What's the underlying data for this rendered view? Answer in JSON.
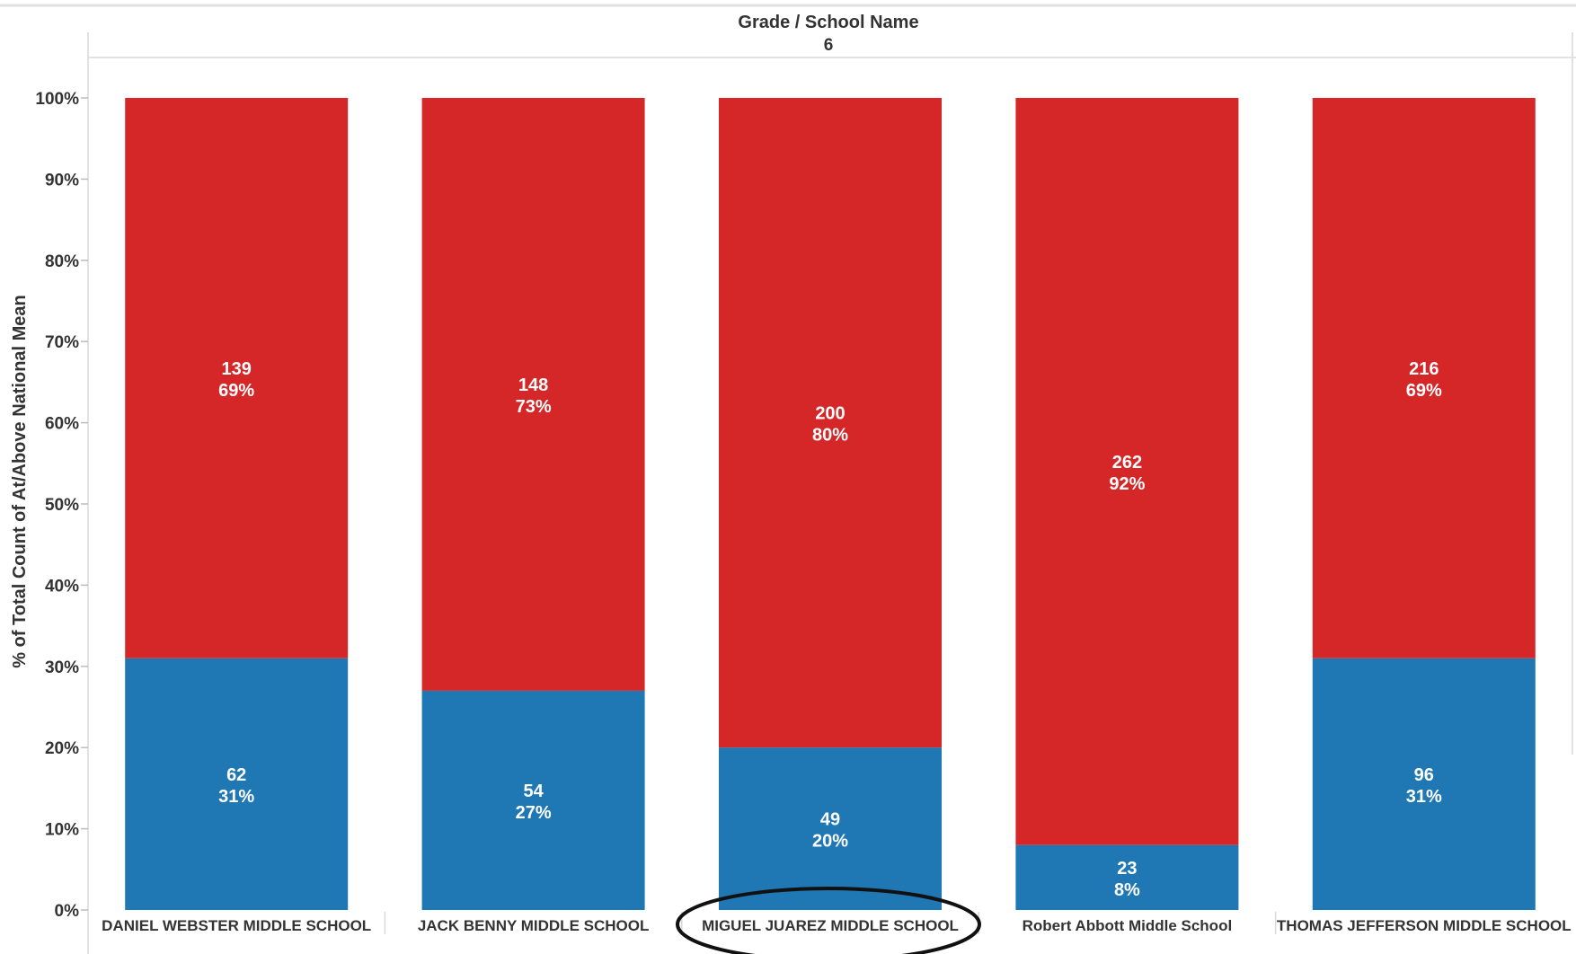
{
  "header": {
    "title": "Grade  /  School Name",
    "subtitle": "6"
  },
  "chart_data": {
    "type": "bar",
    "stacked": true,
    "normalized": true,
    "ylabel": "% of Total Count of At/Above National Mean",
    "ylim": [
      0,
      100
    ],
    "yticks": [
      "0%",
      "10%",
      "20%",
      "30%",
      "40%",
      "50%",
      "60%",
      "70%",
      "80%",
      "90%",
      "100%"
    ],
    "categories": [
      "DANIEL WEBSTER MIDDLE SCHOOL",
      "JACK BENNY MIDDLE SCHOOL",
      "MIGUEL JUAREZ MIDDLE SCHOOL",
      "Robert Abbott Middle School",
      "THOMAS JEFFERSON MIDDLE SCHOOL"
    ],
    "series": [
      {
        "color": "#1f77b4",
        "counts": [
          62,
          54,
          49,
          23,
          96
        ],
        "percents": [
          31,
          27,
          20,
          8,
          31
        ],
        "labels": [
          "31%",
          "27%",
          "20%",
          "8%",
          "31%"
        ]
      },
      {
        "color": "#d62728",
        "counts": [
          139,
          148,
          200,
          262,
          216
        ],
        "percents": [
          69,
          73,
          80,
          92,
          69
        ],
        "labels": [
          "69%",
          "73%",
          "80%",
          "92%",
          "69%"
        ]
      }
    ],
    "grid": false,
    "highlighted_category": "MIGUEL JUAREZ MIDDLE SCHOOL"
  }
}
